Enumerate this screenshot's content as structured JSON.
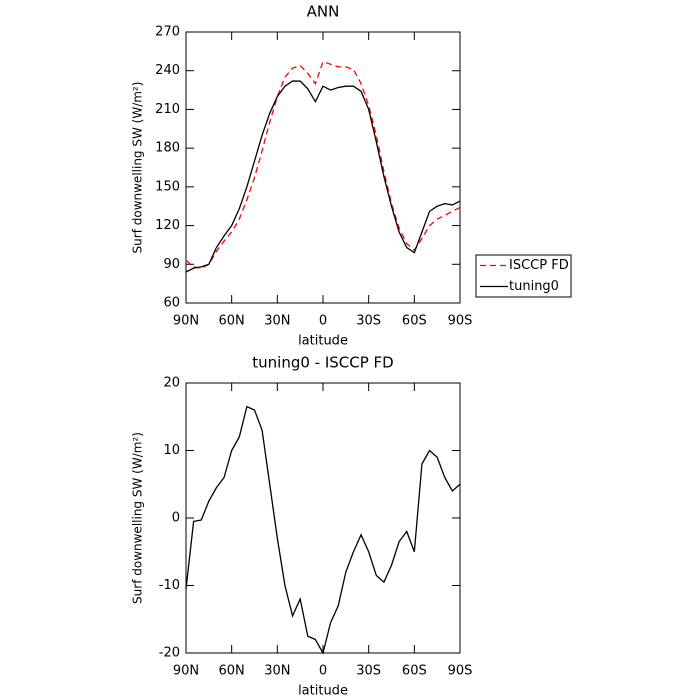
{
  "chart_data": [
    {
      "type": "line",
      "title": "ANN",
      "xlabel": "latitude",
      "ylabel": "Surf downwelling SW (W/m²)",
      "x": [
        90,
        85,
        80,
        75,
        70,
        65,
        60,
        55,
        50,
        45,
        40,
        35,
        30,
        25,
        20,
        15,
        10,
        5,
        0,
        -5,
        -10,
        -15,
        -20,
        -25,
        -30,
        -35,
        -40,
        -45,
        -50,
        -55,
        -60,
        -65,
        -70,
        -75,
        -80,
        -85,
        -90
      ],
      "series": [
        {
          "name": "ISCCP FD",
          "color": "#ff0000",
          "dashed": true,
          "values": [
            93,
            88,
            87,
            90,
            100,
            108,
            115,
            125,
            140,
            157,
            178,
            200,
            220,
            235,
            242,
            244,
            238,
            230,
            247,
            245,
            243,
            243,
            241,
            230,
            213,
            190,
            162,
            137,
            118,
            106,
            101,
            110,
            120,
            125,
            128,
            131,
            134
          ]
        },
        {
          "name": "tuning0",
          "color": "#000000",
          "dashed": false,
          "values": [
            84,
            87,
            88,
            90,
            103,
            112,
            120,
            133,
            150,
            170,
            190,
            207,
            220,
            228,
            232,
            232,
            226,
            216,
            228,
            225,
            227,
            228,
            228,
            224,
            210,
            185,
            158,
            135,
            115,
            103,
            99,
            115,
            131,
            135,
            137,
            136,
            139
          ]
        }
      ],
      "xlim": [
        90,
        -90
      ],
      "xticks": [
        {
          "value": 90,
          "label": "90N"
        },
        {
          "value": 60,
          "label": "60N"
        },
        {
          "value": 30,
          "label": "30N"
        },
        0,
        {
          "value": -30,
          "label": "30S"
        },
        {
          "value": -60,
          "label": "60S"
        },
        {
          "value": -90,
          "label": "90S"
        }
      ],
      "ylim": [
        60,
        270
      ],
      "yticks": [
        60,
        90,
        120,
        150,
        180,
        210,
        240,
        270
      ],
      "legend": "right"
    },
    {
      "type": "line",
      "title": "tuning0 - ISCCP FD",
      "xlabel": "latitude",
      "ylabel": "Surf downwelling SW (W/m²)",
      "x": [
        90,
        85,
        80,
        75,
        70,
        65,
        60,
        55,
        50,
        45,
        40,
        35,
        30,
        25,
        20,
        15,
        10,
        5,
        0,
        -5,
        -10,
        -15,
        -20,
        -25,
        -30,
        -35,
        -40,
        -45,
        -50,
        -55,
        -60,
        -65,
        -70,
        -75,
        -80,
        -85,
        -90
      ],
      "series": [
        {
          "color": "#000000",
          "dashed": false,
          "values": [
            -10.5,
            -0.5,
            -0.3,
            2.5,
            4.5,
            6,
            10,
            12,
            16.5,
            16,
            13,
            5,
            -3,
            -10,
            -14.5,
            -12,
            -17.5,
            -18,
            -20,
            -15.5,
            -13,
            -8,
            -5,
            -2.5,
            -5,
            -8.5,
            -9.5,
            -7,
            -3.5,
            -2,
            -5,
            8,
            10,
            9,
            6,
            4,
            5
          ]
        }
      ],
      "xlim": [
        90,
        -90
      ],
      "xticks": [
        {
          "value": 90,
          "label": "90N"
        },
        {
          "value": 60,
          "label": "60N"
        },
        {
          "value": 30,
          "label": "30N"
        },
        0,
        {
          "value": -30,
          "label": "30S"
        },
        {
          "value": -60,
          "label": "60S"
        },
        {
          "value": -90,
          "label": "90S"
        }
      ],
      "ylim": [
        -20,
        20
      ],
      "yticks": [
        -20,
        -10,
        0,
        10,
        20
      ]
    }
  ]
}
